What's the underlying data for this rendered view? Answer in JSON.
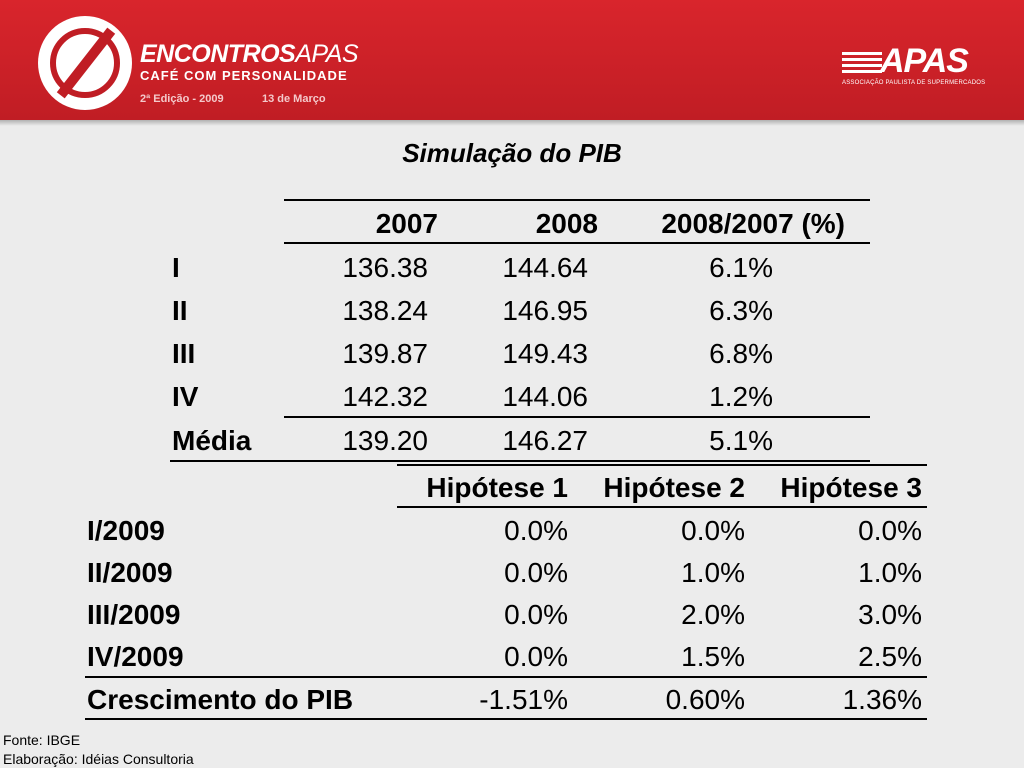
{
  "header": {
    "brand_title_bold": "ENCONTROS",
    "brand_title_thin": "APAS",
    "brand_subtitle": "CAFÉ COM PERSONALIDADE",
    "edition": "2ª Edição - 2009",
    "date": "13 de Março",
    "apas_logo": "APAS",
    "apas_tagline": "ASSOCIAÇÃO PAULISTA DE SUPERMERCADOS",
    "accent_color": "#c01d24"
  },
  "title": "Simulação do PIB",
  "table1": {
    "headers": [
      "2007",
      "2008",
      "2008/2007 (%)"
    ],
    "rows": [
      {
        "label": "I",
        "v2007": "136.38",
        "v2008": "144.64",
        "change": "6.1%"
      },
      {
        "label": "II",
        "v2007": "138.24",
        "v2008": "146.95",
        "change": "6.3%"
      },
      {
        "label": "III",
        "v2007": "139.87",
        "v2008": "149.43",
        "change": "6.8%"
      },
      {
        "label": "IV",
        "v2007": "142.32",
        "v2008": "144.06",
        "change": "1.2%"
      },
      {
        "label": "Média",
        "v2007": "139.20",
        "v2008": "146.27",
        "change": "5.1%"
      }
    ]
  },
  "table2": {
    "headers": [
      "Hipótese 1",
      "Hipótese 2",
      "Hipótese 3"
    ],
    "rows": [
      {
        "label": "I/2009",
        "h1": "0.0%",
        "h2": "0.0%",
        "h3": "0.0%"
      },
      {
        "label": "II/2009",
        "h1": "0.0%",
        "h2": "1.0%",
        "h3": "1.0%"
      },
      {
        "label": "III/2009",
        "h1": "0.0%",
        "h2": "2.0%",
        "h3": "3.0%"
      },
      {
        "label": "IV/2009",
        "h1": "0.0%",
        "h2": "1.5%",
        "h3": "2.5%"
      },
      {
        "label": "Crescimento do PIB",
        "h1": "-1.51%",
        "h2": "0.60%",
        "h3": "1.36%"
      }
    ]
  },
  "footer": {
    "source": "Fonte: IBGE",
    "elaboration": "Elaboração: Idéias Consultoria"
  }
}
